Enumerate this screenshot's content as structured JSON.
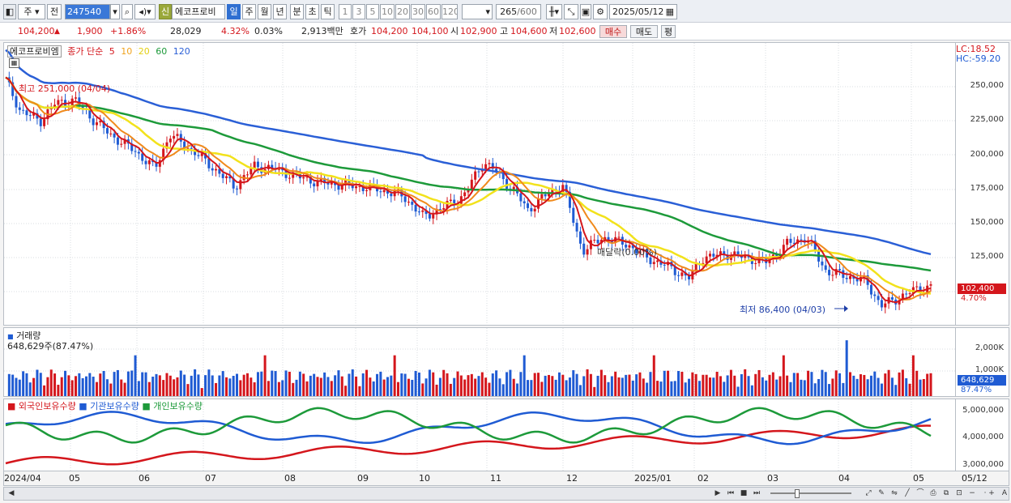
{
  "toolbar": {
    "market_btn": "주",
    "prev_btn": "전",
    "stock_code": "247540",
    "badge_credit": "신",
    "stock_name": "에코프로비",
    "period_day": "일",
    "period_week": "주",
    "period_month": "월",
    "period_year": "년",
    "period_min": "분",
    "period_tick": "초",
    "period_tick2": "틱",
    "intervals": [
      "1",
      "3",
      "5",
      "10",
      "20",
      "30",
      "60",
      "120"
    ],
    "count_value": "265",
    "count_max": "/600",
    "date_value": "2025/05/12"
  },
  "quote": {
    "price": "104,200",
    "change": "1,900",
    "change_pct": "+1.86%",
    "volume": "28,029",
    "vol_ratio": "4.32%",
    "turnover_pct": "0.03%",
    "amount": "2,913백만",
    "hoga_label": "호가",
    "ask": "104,200",
    "bid": "104,100",
    "open_label": "시",
    "open": "102,900",
    "high_label": "고",
    "high": "104,600",
    "low_label": "저",
    "low": "102,600",
    "buy_btn": "매수",
    "sell_btn": "매도",
    "eval_btn": "평"
  },
  "price_panel": {
    "legend_name": "에코프로비엠",
    "legend_ma_label": "종가 단순",
    "legend_ma": [
      "5",
      "10",
      "20",
      "60",
      "120"
    ],
    "lc_label": "LC:18.52",
    "hc_label": "HC:-59.20",
    "max_label": "최고 251,000 (04/04)",
    "min_label": "최저 86,400 (04/03)",
    "mid_label": "매달락(0.00%)",
    "current_price_tag": "102,400",
    "current_pct_tag": "4.70%",
    "y_ticks": [
      "250,000",
      "225,000",
      "200,000",
      "175,000",
      "150,000",
      "125,000"
    ]
  },
  "volume_panel": {
    "title": "거래량",
    "subtitle": "648,629주(87.47%)",
    "y_ticks": [
      "2,000K",
      "1,000K"
    ],
    "current_tag": "648,629",
    "current_pct": "87.47%"
  },
  "holding_panel": {
    "legend_foreign": "외국인보유수량",
    "legend_inst": "기관보유수량",
    "legend_indiv": "개인보유수량",
    "y_ticks": [
      "5,000,000",
      "4,000,000",
      "3,000,000"
    ]
  },
  "date_axis": [
    "2024/04",
    "05",
    "06",
    "07",
    "08",
    "09",
    "10",
    "11",
    "12",
    "2025/01",
    "02",
    "03",
    "04",
    "05",
    "05/12"
  ],
  "colors": {
    "ma5": "#d4161c",
    "ma10": "#f08a1c",
    "ma20": "#f2e21b",
    "ma60": "#1d9a3a",
    "ma120": "#2a5fd6",
    "up": "#d4161c",
    "down": "#1f5bd3"
  }
}
